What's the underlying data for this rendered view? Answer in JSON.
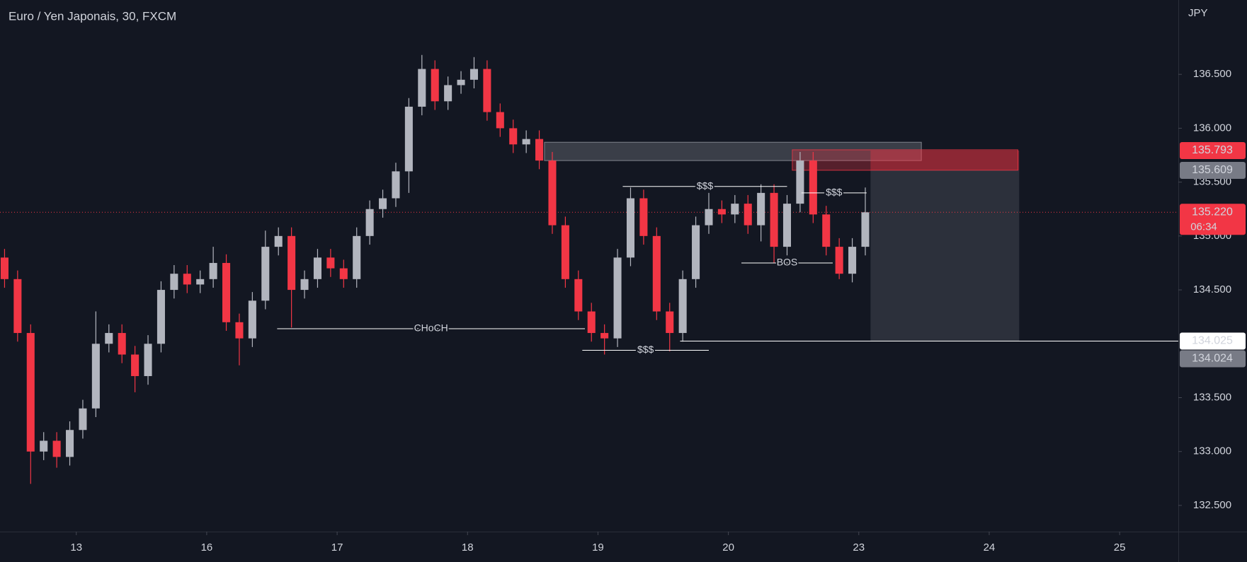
{
  "chart_data": {
    "type": "candlestick",
    "title": "Euro / Yen Japonais, 30, FXCM",
    "currency": "JPY",
    "up_color": "#b2b5be",
    "down_color": "#f23645",
    "xlim": [
      -0.585,
      8.45
    ],
    "ylim": [
      132.257,
      137.19
    ],
    "xticks": [
      {
        "value": 0,
        "label": "13"
      },
      {
        "value": 1,
        "label": "16"
      },
      {
        "value": 2,
        "label": "17"
      },
      {
        "value": 3,
        "label": "18"
      },
      {
        "value": 4,
        "label": "19"
      },
      {
        "value": 5,
        "label": "20"
      },
      {
        "value": 6,
        "label": "23"
      },
      {
        "value": 7,
        "label": "24"
      },
      {
        "value": 8,
        "label": "25"
      }
    ],
    "yticks": [
      {
        "value": 132.5,
        "label": "132.500"
      },
      {
        "value": 133,
        "label": "133.000"
      },
      {
        "value": 133.5,
        "label": "133.500"
      },
      {
        "value": 134.5,
        "label": "134.500"
      },
      {
        "value": 135,
        "label": "135.000"
      },
      {
        "value": 135.5,
        "label": "135.500"
      },
      {
        "value": 136,
        "label": "136.000"
      },
      {
        "value": 136.5,
        "label": "136.500"
      }
    ],
    "x": [
      -0.55,
      -0.45,
      -0.35,
      -0.25,
      -0.15,
      -0.05,
      0.05,
      0.15,
      0.25,
      0.35,
      0.45,
      0.55,
      0.65,
      0.75,
      0.85,
      0.95,
      1.05,
      1.15,
      1.25,
      1.35,
      1.45,
      1.55,
      1.65,
      1.75,
      1.85,
      1.95,
      2.05,
      2.15,
      2.25,
      2.35,
      2.45,
      2.55,
      2.65,
      2.75,
      2.85,
      2.95,
      3.05,
      3.15,
      3.25,
      3.35,
      3.45,
      3.55,
      3.65,
      3.75,
      3.85,
      3.95,
      4.05,
      4.15,
      4.25,
      4.35,
      4.45,
      4.55,
      4.65,
      4.75,
      4.85,
      4.95,
      5.05,
      5.15,
      5.25,
      5.35,
      5.45,
      5.55,
      5.65,
      5.75,
      5.85,
      5.95,
      6.05
    ],
    "open": [
      134.8,
      134.6,
      134.1,
      133,
      133.1,
      132.95,
      133.2,
      133.4,
      134,
      134.1,
      133.9,
      133.7,
      134,
      134.5,
      134.65,
      134.55,
      134.6,
      134.75,
      134.2,
      134.05,
      134.4,
      134.9,
      135,
      134.5,
      134.6,
      134.8,
      134.7,
      134.6,
      135,
      135.25,
      135.35,
      135.6,
      136.2,
      136.55,
      136.25,
      136.4,
      136.45,
      136.55,
      136.15,
      136,
      135.85,
      135.9,
      135.7,
      135.1,
      134.6,
      134.3,
      134.1,
      134.05,
      134.8,
      135.35,
      135,
      134.3,
      134.1,
      134.6,
      135.1,
      135.25,
      135.2,
      135.3,
      135.1,
      135.4,
      134.9,
      135.3,
      135.7,
      135.2,
      134.9,
      134.65,
      134.9
    ],
    "high": [
      134.88,
      134.68,
      134.18,
      133.18,
      133.18,
      133.28,
      133.48,
      134.3,
      134.18,
      134.18,
      133.98,
      134.08,
      134.58,
      134.73,
      134.73,
      134.68,
      134.9,
      134.83,
      134.28,
      134.48,
      135.05,
      135.08,
      135.08,
      134.68,
      134.88,
      134.88,
      134.78,
      135.08,
      135.33,
      135.43,
      135.68,
      136.28,
      136.68,
      136.63,
      136.48,
      136.53,
      136.66,
      136.63,
      136.23,
      136.08,
      135.98,
      135.98,
      135.78,
      135.18,
      134.68,
      134.38,
      134.18,
      134.88,
      135.45,
      135.43,
      135.08,
      134.38,
      134.68,
      135.18,
      135.4,
      135.33,
      135.38,
      135.38,
      135.48,
      135.48,
      135.38,
      135.78,
      135.78,
      135.28,
      134.98,
      134.98,
      135.45
    ],
    "low": [
      134.52,
      134.02,
      132.7,
      132.92,
      132.85,
      132.87,
      133.12,
      133.32,
      133.92,
      133.82,
      133.55,
      133.62,
      133.92,
      134.42,
      134.47,
      134.47,
      134.52,
      134.12,
      133.8,
      133.97,
      134.32,
      134.82,
      134.15,
      134.42,
      134.52,
      134.62,
      134.52,
      134.52,
      134.92,
      135.17,
      135.27,
      135.4,
      136.12,
      136.17,
      136.17,
      136.32,
      136.37,
      136.07,
      135.92,
      135.77,
      135.77,
      135.62,
      135.02,
      134.52,
      134.22,
      134.02,
      133.9,
      133.97,
      134.72,
      134.92,
      134.22,
      133.93,
      134.02,
      134.52,
      135.02,
      135.12,
      135.12,
      135.02,
      134.95,
      134.75,
      134.82,
      135.22,
      135.12,
      134.82,
      134.6,
      134.57,
      134.82
    ],
    "close": [
      134.6,
      134.1,
      133,
      133.1,
      132.95,
      133.2,
      133.4,
      134,
      134.1,
      133.9,
      133.7,
      134,
      134.5,
      134.65,
      134.55,
      134.6,
      134.75,
      134.2,
      134.05,
      134.4,
      134.9,
      135,
      134.5,
      134.6,
      134.8,
      134.7,
      134.6,
      135,
      135.25,
      135.35,
      135.6,
      136.2,
      136.55,
      136.25,
      136.4,
      136.45,
      136.55,
      136.15,
      136,
      135.85,
      135.9,
      135.7,
      135.1,
      134.6,
      134.3,
      134.1,
      134.05,
      134.8,
      135.35,
      135,
      134.3,
      134.1,
      134.6,
      135.1,
      135.25,
      135.2,
      135.3,
      135.1,
      135.4,
      134.9,
      135.3,
      135.7,
      135.2,
      134.9,
      134.65,
      134.9,
      135.22
    ],
    "zones": [
      {
        "x": [
          3.59,
          6.48
        ],
        "y": [
          135.7,
          135.87
        ],
        "color": "#9598a1"
      },
      {
        "x": [
          5.49,
          7.22
        ],
        "y": [
          135.61,
          135.8
        ],
        "color": "#f23645"
      }
    ],
    "position": {
      "x": [
        6.09,
        7.23
      ],
      "entry": 135.609,
      "stop": 135.793,
      "target": 134.025
    },
    "annotations": [
      {
        "label": "CHoCH",
        "x": [
          1.54,
          3.9
        ],
        "y": 134.14
      },
      {
        "label": "$$$",
        "x": [
          3.88,
          4.85
        ],
        "y": 133.94
      },
      {
        "label": "$$$",
        "x": [
          4.19,
          5.45
        ],
        "y": 135.46
      },
      {
        "label": "$$$",
        "x": [
          5.56,
          6.06
        ],
        "y": 135.4
      },
      {
        "label": "BOS",
        "x": [
          5.1,
          5.8
        ],
        "y": 134.75
      },
      {
        "x": [
          4.63,
          8.45
        ],
        "y": 134.025
      }
    ],
    "last_price": 135.22,
    "price_tags": [
      {
        "value": 135.793,
        "label": "135.793",
        "color": "#f23645",
        "text_color": "#ffffff"
      },
      {
        "value": 135.609,
        "label": "135.609",
        "color": "#787b86",
        "text_color": "#ffffff"
      },
      {
        "value": 135.22,
        "label": "135.220",
        "sublabel": "06:34",
        "color": "#f23645",
        "text_color": "#ffffff"
      },
      {
        "value": 134.025,
        "label": "134.025",
        "color": "#ffffff",
        "text_color": "#131722"
      },
      {
        "value": 134.024,
        "label": "134.024",
        "color": "#787b86",
        "text_color": "#131722"
      }
    ]
  }
}
